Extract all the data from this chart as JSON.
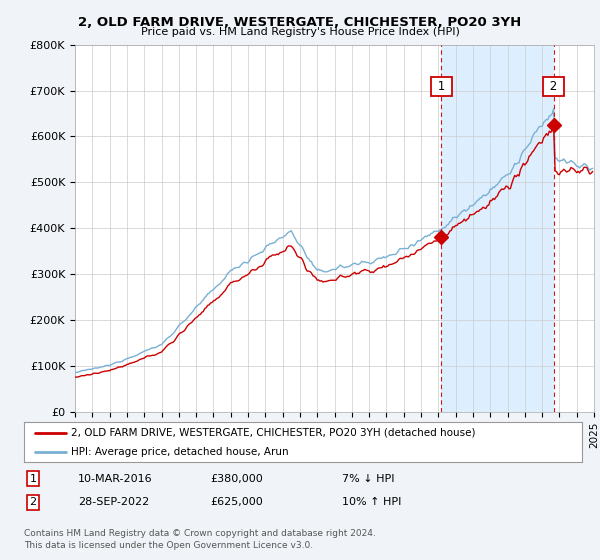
{
  "title": "2, OLD FARM DRIVE, WESTERGATE, CHICHESTER, PO20 3YH",
  "subtitle": "Price paid vs. HM Land Registry's House Price Index (HPI)",
  "ylim": [
    0,
    800000
  ],
  "yticks": [
    0,
    100000,
    200000,
    300000,
    400000,
    500000,
    600000,
    700000,
    800000
  ],
  "ytick_labels": [
    "£0",
    "£100K",
    "£200K",
    "£300K",
    "£400K",
    "£500K",
    "£600K",
    "£700K",
    "£800K"
  ],
  "sale1_year": 2016,
  "sale1_month": 3,
  "sale1_price": 380000,
  "sale2_year": 2022,
  "sale2_month": 9,
  "sale2_price": 625000,
  "hpi_color": "#7ab0d4",
  "price_color": "#cc0000",
  "shade_color": "#ddeeff",
  "background_color": "#f0f4f8",
  "plot_bg_color": "#ffffff",
  "legend_house": "2, OLD FARM DRIVE, WESTERGATE, CHICHESTER, PO20 3YH (detached house)",
  "legend_hpi": "HPI: Average price, detached house, Arun",
  "table_row1": [
    "1",
    "10-MAR-2016",
    "£380,000",
    "7% ↓ HPI"
  ],
  "table_row2": [
    "2",
    "28-SEP-2022",
    "£625,000",
    "10% ↑ HPI"
  ],
  "footnote": "Contains HM Land Registry data © Crown copyright and database right 2024.\nThis data is licensed under the Open Government Licence v3.0.",
  "xmin": 1995,
  "xmax": 2025
}
